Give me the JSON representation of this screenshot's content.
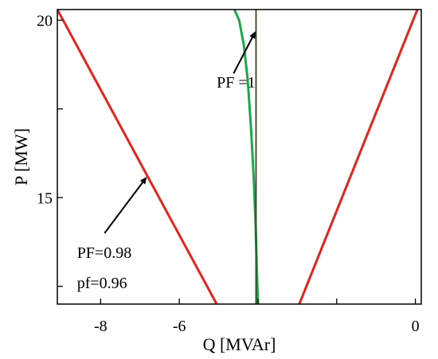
{
  "chart_data": {
    "type": "line",
    "xlabel": "Q [MVAr]",
    "ylabel": "P [MW]",
    "xlim": [
      -9.1,
      0.15
    ],
    "ylim": [
      12.0,
      20.3
    ],
    "xticks": [
      {
        "value": -8,
        "label": "-8"
      },
      {
        "value": -6,
        "label": "-6"
      },
      {
        "value": -4,
        "label": ""
      },
      {
        "value": -2,
        "label": ""
      },
      {
        "value": 0,
        "label": "0"
      }
    ],
    "yticks": [
      {
        "value": 12.5,
        "label": ""
      },
      {
        "value": 15,
        "label": "15"
      },
      {
        "value": 17.5,
        "label": ""
      },
      {
        "value": 20,
        "label": "20"
      }
    ],
    "series": [
      {
        "color": "#e8221b",
        "x": [
          -9.1,
          -5.05
        ],
        "y": [
          20.3,
          12.0
        ]
      },
      {
        "color": "#e8221b",
        "x": [
          -2.95,
          0.05
        ],
        "y": [
          12.0,
          20.3
        ]
      },
      {
        "color": "#1aa84a",
        "x": [
          -4.6,
          -4.48,
          -4.36,
          -4.26,
          -4.18,
          -4.11,
          -4.06,
          -4.03,
          -4.01,
          -4.0
        ],
        "y": [
          20.3,
          20.0,
          19.3,
          18.3,
          17.0,
          15.6,
          14.2,
          13.0,
          12.3,
          12.0
        ]
      },
      {
        "color": "#3d3d26",
        "x": [
          -4.05,
          -4.05
        ],
        "y": [
          12.0,
          20.3
        ]
      }
    ],
    "annotations": [
      {
        "text": "PF =1",
        "text_x": -5.05,
        "text_y": 18.1,
        "arrow_from": [
          -4.62,
          18.5
        ],
        "arrow_to": [
          -4.08,
          19.65
        ]
      },
      {
        "text": "PF=0.98",
        "text_x": -8.6,
        "text_y": 13.3,
        "arrow_from": [
          -7.9,
          14.0
        ],
        "arrow_to": [
          -6.85,
          15.55
        ]
      },
      {
        "text": "pf=0.96",
        "text_x": -8.6,
        "text_y": 12.45,
        "arrow_from": null,
        "arrow_to": null
      }
    ]
  }
}
